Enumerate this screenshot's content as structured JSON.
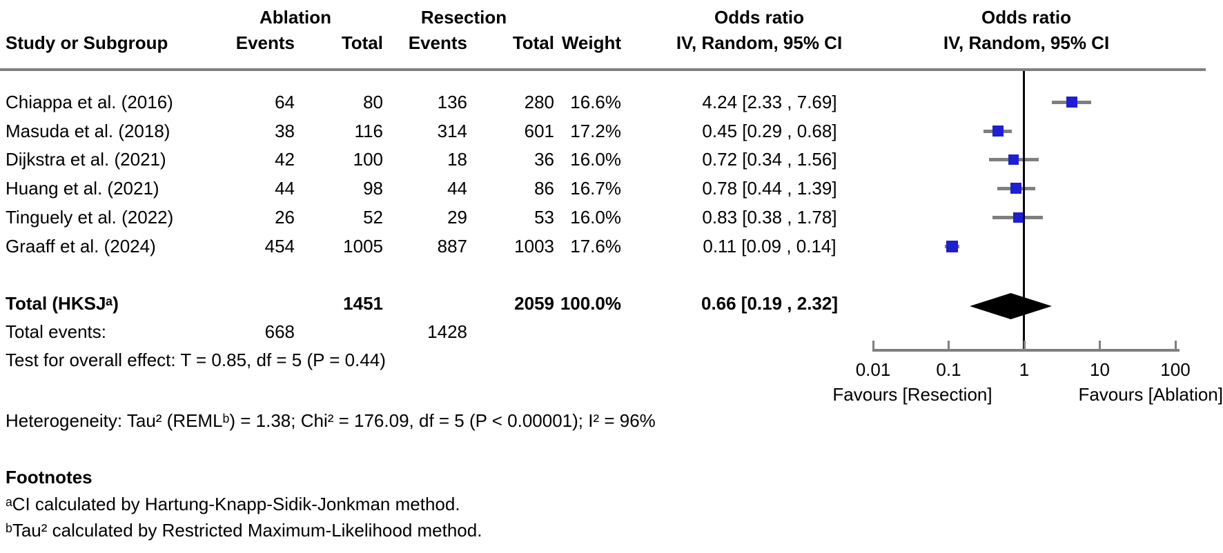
{
  "header": {
    "group_ablation": "Ablation",
    "group_resection": "Resection",
    "odds_ratio_left": "Odds ratio",
    "odds_ratio_right": "Odds ratio",
    "method_left": "IV, Random, 95% CI",
    "method_right": "IV, Random, 95% CI",
    "study": "Study or Subgroup",
    "events": "Events",
    "total": "Total",
    "events2": "Events",
    "total2": "Total",
    "weight": "Weight"
  },
  "chart_data": {
    "type": "forest",
    "x_axis": {
      "scale": "log",
      "ticks": [
        0.01,
        0.1,
        1,
        10,
        100
      ],
      "tick_labels": [
        "0.01",
        "0.1",
        "1",
        "10",
        "100"
      ],
      "reference_line": 1,
      "favours_left": "Favours [Resection]",
      "favours_right": "Favours [Ablation]"
    },
    "effect_measure": "Odds ratio, IV, Random, 95% CI",
    "studies": [
      {
        "study": "Chiappa et al. (2016)",
        "ablation_events": 64,
        "ablation_total": 80,
        "resection_events": 136,
        "resection_total": 280,
        "weight": "16.6%",
        "weight_value": 16.6,
        "or": 4.24,
        "ci_low": 2.33,
        "ci_high": 7.69,
        "or_text": "4.24 [2.33 , 7.69]"
      },
      {
        "study": "Masuda et al. (2018)",
        "ablation_events": 38,
        "ablation_total": 116,
        "resection_events": 314,
        "resection_total": 601,
        "weight": "17.2%",
        "weight_value": 17.2,
        "or": 0.45,
        "ci_low": 0.29,
        "ci_high": 0.68,
        "or_text": "0.45 [0.29 , 0.68]"
      },
      {
        "study": "Dijkstra et al. (2021)",
        "ablation_events": 42,
        "ablation_total": 100,
        "resection_events": 18,
        "resection_total": 36,
        "weight": "16.0%",
        "weight_value": 16.0,
        "or": 0.72,
        "ci_low": 0.34,
        "ci_high": 1.56,
        "or_text": "0.72 [0.34 , 1.56]"
      },
      {
        "study": "Huang et al. (2021)",
        "ablation_events": 44,
        "ablation_total": 98,
        "resection_events": 44,
        "resection_total": 86,
        "weight": "16.7%",
        "weight_value": 16.7,
        "or": 0.78,
        "ci_low": 0.44,
        "ci_high": 1.39,
        "or_text": "0.78 [0.44 , 1.39]"
      },
      {
        "study": "Tinguely et al. (2022)",
        "ablation_events": 26,
        "ablation_total": 52,
        "resection_events": 29,
        "resection_total": 53,
        "weight": "16.0%",
        "weight_value": 16.0,
        "or": 0.83,
        "ci_low": 0.38,
        "ci_high": 1.78,
        "or_text": "0.83 [0.38 , 1.78]"
      },
      {
        "study": "Graaff et al. (2024)",
        "ablation_events": 454,
        "ablation_total": 1005,
        "resection_events": 887,
        "resection_total": 1003,
        "weight": "17.6%",
        "weight_value": 17.6,
        "or": 0.11,
        "ci_low": 0.09,
        "ci_high": 0.14,
        "or_text": "0.11 [0.09 , 0.14]"
      }
    ],
    "total": {
      "label": "Total (HKSJᵃ)",
      "ablation_total": 1451,
      "resection_total": 2059,
      "weight": "100.0%",
      "or": 0.66,
      "ci_low": 0.19,
      "ci_high": 2.32,
      "or_text": "0.66 [0.19 , 2.32]"
    },
    "total_events": {
      "label": "Total events:",
      "ablation": 668,
      "resection": 1428
    }
  },
  "stats": {
    "overall_effect": "Test for overall effect: T = 0.85, df = 5 (P = 0.44)",
    "heterogeneity": "Heterogeneity: Tau² (REMLᵇ) = 1.38; Chi² = 176.09, df = 5 (P < 0.00001); I² = 96%"
  },
  "footnotes": {
    "title": "Footnotes",
    "a": "ᵃCI calculated by Hartung-Knapp-Sidik-Jonkman method.",
    "b": "ᵇTau² calculated by Restricted Maximum-Likelihood method."
  },
  "colors": {
    "marker_blue": "#1e1ed2",
    "ci_gray": "#7f7f7f",
    "diamond_black": "#000000",
    "axis_gray": "#7f7f7f",
    "reference_black": "#000000"
  }
}
